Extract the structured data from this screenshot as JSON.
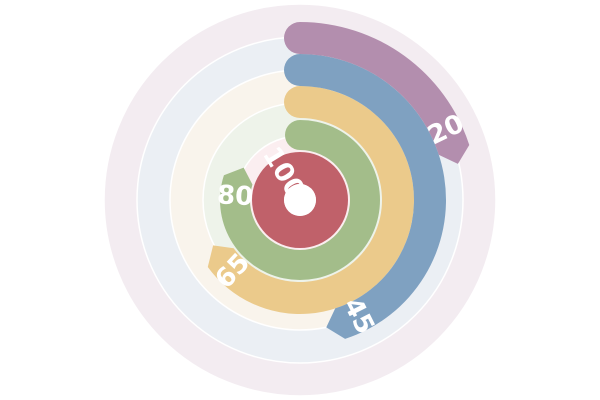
{
  "chart_data": {
    "type": "radial-bar",
    "max": 100,
    "direction": "clockwise-from-top",
    "rings": [
      {
        "label": "100",
        "value": 100,
        "color": "#c0616a",
        "track": "#fbeef0"
      },
      {
        "label": "80",
        "value": 80,
        "color": "#a3bd8a",
        "track": "#eef3ea"
      },
      {
        "label": "65",
        "value": 65,
        "color": "#ebca8b",
        "track": "#f9f4ec"
      },
      {
        "label": "45",
        "value": 45,
        "color": "#7fa1c1",
        "track": "#ebeff4"
      },
      {
        "label": "20",
        "value": 20,
        "color": "#b38eae",
        "track": "#f3ecf1"
      }
    ]
  }
}
